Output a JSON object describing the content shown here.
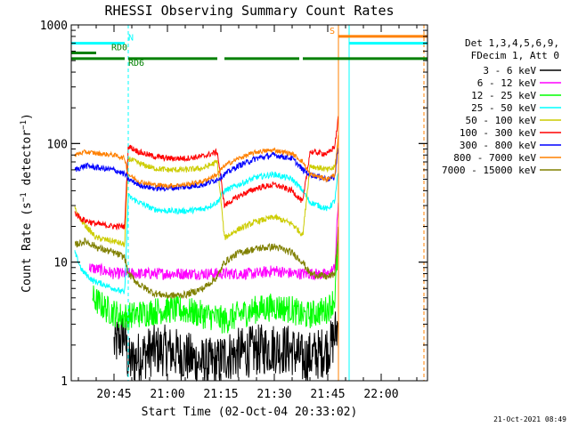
{
  "chart_data": {
    "type": "line",
    "title": "RHESSI Observing Summary Count Rates",
    "xlabel": "Start Time (02-Oct-04 20:33:02)",
    "ylabel": "Count Rate (s⁻¹ detector⁻¹)",
    "ylabel_main": "Count Rate (s",
    "ylabel_sup1": "−1",
    "ylabel_mid": " detector",
    "ylabel_sup2": "−1",
    "ylabel_end": ")",
    "y_scale": "log",
    "xlim": [
      "20:33",
      "22:13"
    ],
    "ylim": [
      1,
      1000
    ],
    "x_ticks": [
      "20:45",
      "21:00",
      "21:15",
      "21:30",
      "21:45",
      "22:00"
    ],
    "y_ticks": [
      "1",
      "10",
      "100",
      "1000"
    ],
    "legend_placement": "top-right",
    "legend_header": [
      "Det 1,3,4,5,6,9,",
      "FDecim 1, Att 0"
    ],
    "timestamp": "21-Oct-2021 08:49",
    "gap_times": [
      "20:48",
      "21:15",
      "21:38"
    ],
    "flag_lines": [
      {
        "label": "N",
        "color": "#00ffff",
        "y": 700,
        "segments": [
          [
            "20:33",
            "20:48"
          ],
          [
            "21:51",
            "22:13"
          ]
        ]
      },
      {
        "label": "RD0",
        "color": "#008000",
        "y": 580,
        "segments": [
          [
            "20:33",
            "20:40"
          ]
        ]
      },
      {
        "label": "RD6",
        "color": "#008000",
        "y": 520,
        "segments": [
          [
            "20:33",
            "20:48"
          ],
          [
            "20:49",
            "21:14"
          ],
          [
            "21:16",
            "21:37"
          ],
          [
            "21:38",
            "22:13"
          ]
        ]
      },
      {
        "label": "S",
        "color": "#ff8000",
        "y": 800,
        "segments": [
          [
            "21:48",
            "22:13"
          ]
        ]
      }
    ],
    "vertical_markers": [
      {
        "x": "20:33",
        "color": "#00ffff",
        "style": "solid"
      },
      {
        "x": "20:49",
        "color": "#00ffff",
        "style": "dashed"
      },
      {
        "x": "21:48",
        "color": "#ff8000",
        "style": "solid"
      },
      {
        "x": "21:51",
        "color": "#00ffff",
        "style": "solid"
      },
      {
        "x": "22:12",
        "color": "#ff8000",
        "style": "dashed"
      }
    ],
    "series": [
      {
        "name": "3 - 6 keV",
        "color": "#000000",
        "noise": 0.22,
        "x": [
          "20:45",
          "20:48",
          "20:49",
          "20:52",
          "20:56",
          "21:00",
          "21:05",
          "21:10",
          "21:14",
          "21:16",
          "21:20",
          "21:25",
          "21:30",
          "21:35",
          "21:38",
          "21:40",
          "21:43",
          "21:46",
          "21:48"
        ],
        "y": [
          2.0,
          2.5,
          1.4,
          1.6,
          1.8,
          1.8,
          1.6,
          1.4,
          1.4,
          1.6,
          1.7,
          1.8,
          1.9,
          1.8,
          1.5,
          1.6,
          1.7,
          2.0,
          3.0
        ]
      },
      {
        "name": "6 - 12 keV",
        "color": "#ff00ff",
        "noise": 0.05,
        "x": [
          "20:38",
          "20:42",
          "20:45",
          "20:48",
          "20:49",
          "20:55",
          "21:00",
          "21:05",
          "21:10",
          "21:14",
          "21:16",
          "21:20",
          "21:25",
          "21:30",
          "21:35",
          "21:38",
          "21:40",
          "21:45",
          "21:47",
          "21:48"
        ],
        "y": [
          9,
          8.5,
          8,
          8,
          8,
          8,
          8,
          8,
          8,
          8,
          8,
          8,
          8,
          8.5,
          8,
          8,
          8,
          7.8,
          9,
          35
        ]
      },
      {
        "name": "12 - 25 keV",
        "color": "#00ff00",
        "noise": 0.12,
        "x": [
          "20:39",
          "20:43",
          "20:47",
          "20:48",
          "20:49",
          "20:55",
          "21:00",
          "21:05",
          "21:10",
          "21:14",
          "21:16",
          "21:20",
          "21:25",
          "21:30",
          "21:35",
          "21:38",
          "21:40",
          "21:45",
          "21:47",
          "21:48"
        ],
        "y": [
          5.0,
          4.0,
          3.5,
          3.5,
          3.5,
          3.8,
          4.0,
          3.9,
          3.6,
          3.4,
          3.2,
          3.6,
          4.0,
          4.2,
          4.0,
          3.5,
          3.6,
          4.0,
          5.0,
          15
        ]
      },
      {
        "name": "25 - 50 keV",
        "color": "#00ffff",
        "noise": 0.025,
        "x": [
          "20:34",
          "20:36",
          "20:39",
          "20:42",
          "20:45",
          "20:48",
          "20:49",
          "20:52",
          "20:56",
          "21:00",
          "21:05",
          "21:10",
          "21:14",
          "21:16",
          "21:20",
          "21:25",
          "21:30",
          "21:35",
          "21:38",
          "21:40",
          "21:45",
          "21:47",
          "21:48"
        ],
        "y": [
          12,
          8.5,
          7,
          6.5,
          6.0,
          5.5,
          36,
          32,
          28,
          27,
          27,
          28,
          32,
          40,
          45,
          52,
          55,
          50,
          40,
          32,
          28,
          33,
          60
        ]
      },
      {
        "name": "50 - 100 keV",
        "color": "#cccc00",
        "noise": 0.025,
        "x": [
          "20:34",
          "20:36",
          "20:40",
          "20:45",
          "20:48",
          "20:49",
          "20:52",
          "20:56",
          "21:00",
          "21:05",
          "21:10",
          "21:14",
          "21:16",
          "21:20",
          "21:25",
          "21:30",
          "21:35",
          "21:38",
          "21:40",
          "21:45",
          "21:47",
          "21:48"
        ],
        "y": [
          28,
          22,
          16,
          15,
          14,
          75,
          68,
          62,
          60,
          60,
          62,
          70,
          16,
          19,
          22,
          24,
          21,
          17,
          65,
          60,
          63,
          110
        ]
      },
      {
        "name": "100 - 300 keV",
        "color": "#ff0000",
        "noise": 0.025,
        "x": [
          "20:34",
          "20:36",
          "20:40",
          "20:45",
          "20:48",
          "20:49",
          "20:52",
          "20:56",
          "21:00",
          "21:05",
          "21:10",
          "21:14",
          "21:16",
          "21:20",
          "21:25",
          "21:30",
          "21:35",
          "21:38",
          "21:40",
          "21:45",
          "21:47",
          "21:48"
        ],
        "y": [
          26,
          23,
          21,
          20,
          20,
          95,
          85,
          78,
          75,
          75,
          78,
          85,
          30,
          36,
          42,
          45,
          40,
          32,
          85,
          82,
          95,
          170
        ]
      },
      {
        "name": "300 - 800 keV",
        "color": "#0000ff",
        "noise": 0.025,
        "x": [
          "20:34",
          "20:37",
          "20:41",
          "20:45",
          "20:48",
          "20:49",
          "20:52",
          "20:56",
          "21:00",
          "21:05",
          "21:10",
          "21:14",
          "21:16",
          "21:20",
          "21:25",
          "21:30",
          "21:35",
          "21:38",
          "21:40",
          "21:45",
          "21:47",
          "21:48"
        ],
        "y": [
          60,
          65,
          62,
          60,
          55,
          50,
          45,
          42,
          42,
          43,
          45,
          50,
          55,
          65,
          75,
          80,
          75,
          60,
          55,
          50,
          52,
          100
        ]
      },
      {
        "name": "800 - 7000 keV",
        "color": "#ff8000",
        "noise": 0.02,
        "x": [
          "20:34",
          "20:37",
          "20:41",
          "20:45",
          "20:48",
          "20:49",
          "20:52",
          "20:56",
          "21:00",
          "21:05",
          "21:10",
          "21:14",
          "21:16",
          "21:20",
          "21:25",
          "21:30",
          "21:35",
          "21:38",
          "21:40",
          "21:45",
          "21:47",
          "21:48"
        ],
        "y": [
          80,
          85,
          82,
          80,
          75,
          55,
          48,
          45,
          44,
          45,
          48,
          55,
          65,
          75,
          85,
          88,
          82,
          70,
          55,
          50,
          55,
          120
        ]
      },
      {
        "name": "7000 - 15000 keV",
        "color": "#808000",
        "noise": 0.03,
        "x": [
          "20:34",
          "20:37",
          "20:41",
          "20:45",
          "20:48",
          "20:49",
          "20:52",
          "20:56",
          "21:00",
          "21:05",
          "21:10",
          "21:14",
          "21:16",
          "21:20",
          "21:25",
          "21:30",
          "21:35",
          "21:38",
          "21:40",
          "21:45",
          "21:47",
          "21:48"
        ],
        "y": [
          14,
          15,
          13,
          12,
          11,
          8,
          6.5,
          5.5,
          5.2,
          5.3,
          6,
          7.5,
          10,
          12,
          13,
          13.5,
          12,
          10,
          8,
          7.5,
          8,
          20
        ]
      }
    ]
  }
}
